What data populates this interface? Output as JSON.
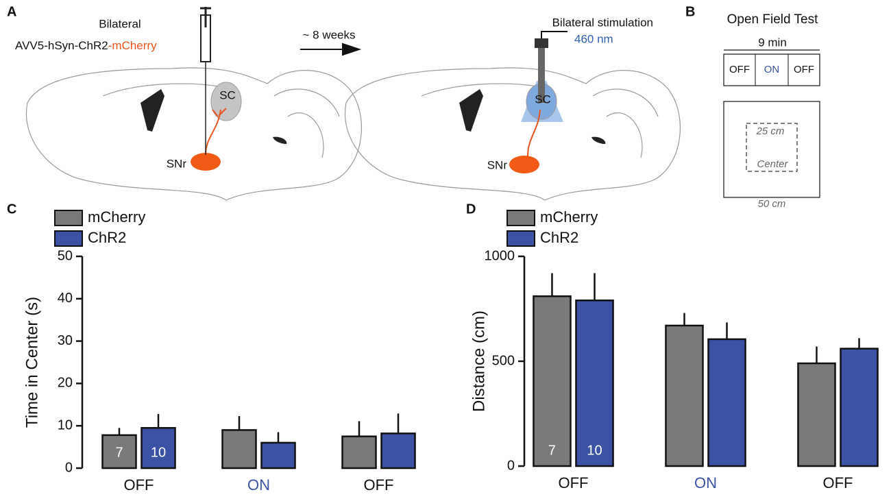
{
  "panel_a": {
    "label": "A",
    "injection_line1": "Bilateral",
    "injection_line2": "AVV5-hSyn-ChR2",
    "injection_virus": "-mCherry",
    "delay": "~ 8 weeks",
    "sc_left": "SC",
    "snr_left": "SNr",
    "stimulation": "Bilateral stimulation",
    "wavelength": "460 nm",
    "sc_right": "SC",
    "snr_right": "SNr"
  },
  "panel_b": {
    "label": "B",
    "title": "Open Field Test",
    "duration": "9 min",
    "epochs": [
      "OFF",
      "ON",
      "OFF"
    ],
    "inner_size": "25 cm",
    "inner_name": "Center",
    "outer_size": "50 cm"
  },
  "chart_data": [
    {
      "type": "bar",
      "panel_label": "C",
      "ylabel": "Time in Center (s)",
      "categories": [
        "OFF",
        "ON",
        "OFF"
      ],
      "category_colors": [
        "#111111",
        "#3a53a4",
        "#111111"
      ],
      "series": [
        {
          "name": "mCherry",
          "color": "#7a7a7a",
          "values": [
            7.8,
            9.0,
            7.5
          ],
          "errors": [
            1.7,
            3.3,
            3.6
          ],
          "n": 7
        },
        {
          "name": "ChR2",
          "color": "#3a53a4",
          "values": [
            9.5,
            6.0,
            8.2
          ],
          "errors": [
            3.3,
            2.5,
            4.7
          ],
          "n": 10
        }
      ],
      "ylim": [
        0,
        50
      ],
      "yticks": [
        0,
        10,
        20,
        30,
        40,
        50
      ]
    },
    {
      "type": "bar",
      "panel_label": "D",
      "ylabel": "Distance (cm)",
      "categories": [
        "OFF",
        "ON",
        "OFF"
      ],
      "category_colors": [
        "#111111",
        "#3a53a4",
        "#111111"
      ],
      "series": [
        {
          "name": "mCherry",
          "color": "#7a7a7a",
          "values": [
            810,
            670,
            490
          ],
          "errors": [
            110,
            60,
            80
          ],
          "n": 7
        },
        {
          "name": "ChR2",
          "color": "#3a53a4",
          "values": [
            790,
            605,
            560
          ],
          "errors": [
            130,
            80,
            50
          ],
          "n": 10
        }
      ],
      "ylim": [
        0,
        1000
      ],
      "yticks": [
        0,
        500,
        1000
      ]
    }
  ]
}
